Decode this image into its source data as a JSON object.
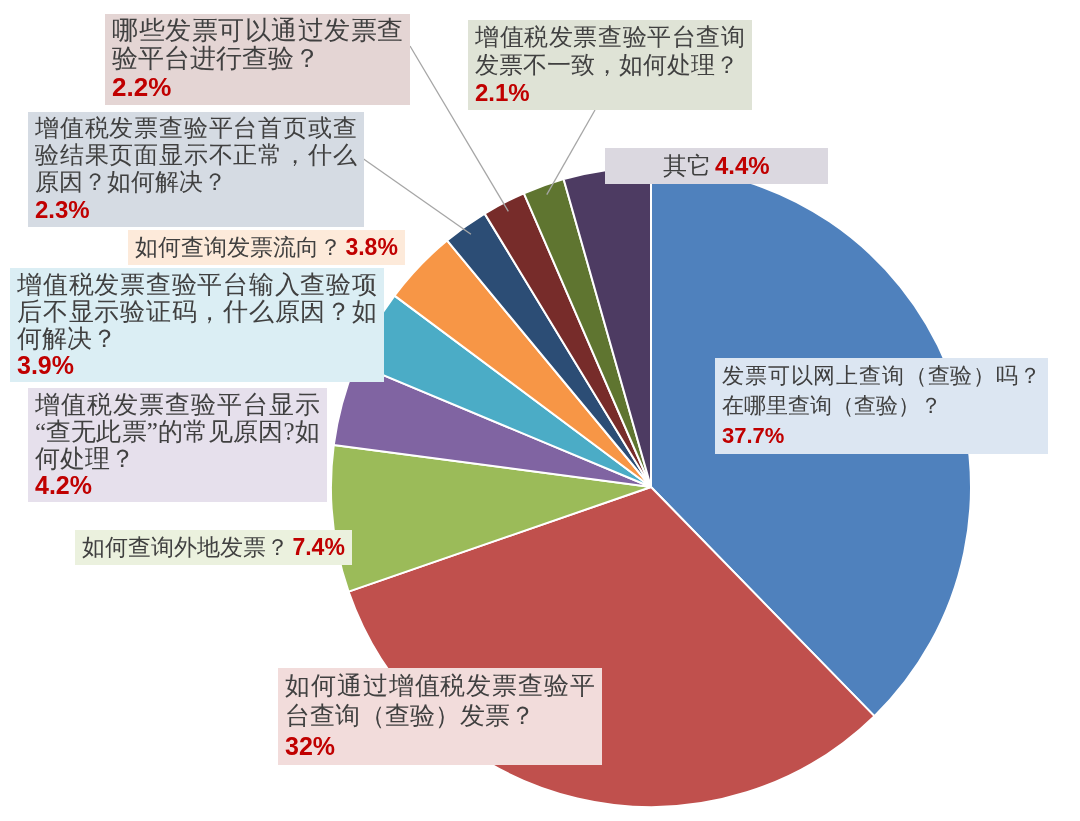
{
  "chart_data": {
    "type": "pie",
    "categories": [
      "发票可以网上查询（查验）吗？在哪里查询（查验）？",
      "如何通过增值税发票查验平台查询（查验）发票？",
      "如何查询外地发票？",
      "增值税发票查验平台显示“查无此票”的常见原因?如何处理？",
      "增值税发票查验平台输入查验项后不显示验证码，什么原因？如何解决？",
      "如何查询发票流向？",
      "增值税发票查验平台首页或查验结果页面显示不正常，什么原因？如何解决？",
      "哪些发票可以通过发票查验平台进行查验？",
      "增值税发票查验平台查询发票不一致，如何处理？",
      "其它"
    ],
    "values": [
      37.7,
      32,
      7.4,
      4.2,
      3.9,
      3.8,
      2.3,
      2.2,
      2.1,
      4.4
    ],
    "colors": [
      "#4f81bd",
      "#c0504d",
      "#9bbb59",
      "#8064a2",
      "#4bacc6",
      "#f79646",
      "#2c4d75",
      "#772c2a",
      "#5f7530",
      "#4d3b62"
    ],
    "value_labels": [
      "37.7%",
      "32%",
      "7.4%",
      "4.2%",
      "3.9%",
      "3.8%",
      "2.3%",
      "2.2%",
      "2.1%",
      "4.4%"
    ]
  }
}
